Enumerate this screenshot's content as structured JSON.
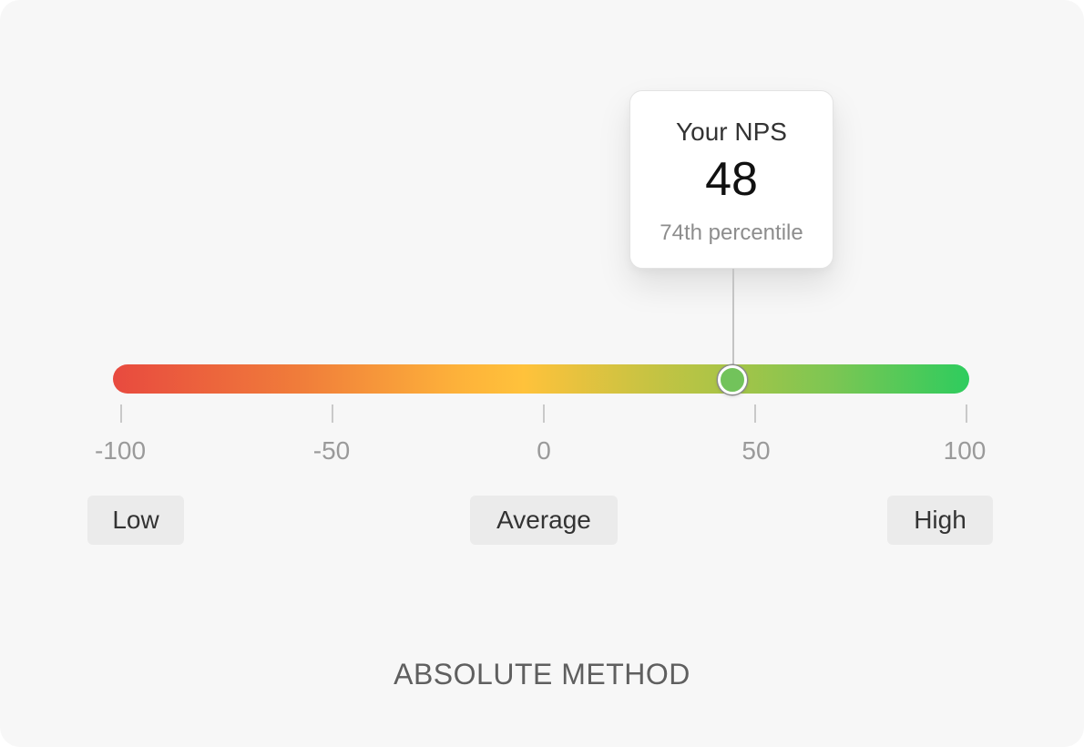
{
  "callout": {
    "title": "Your NPS",
    "value": "48",
    "percentile": "74th percentile"
  },
  "gauge": {
    "score": 48,
    "colors": [
      "#e84a3f",
      "#fdb13a",
      "#ffc23b",
      "#2ecc5e"
    ],
    "marker_color": "#72c35b"
  },
  "scale": {
    "ticks": [
      "-100",
      "-50",
      "0",
      "50",
      "100"
    ]
  },
  "bands": {
    "low": "Low",
    "average": "Average",
    "high": "High"
  },
  "footer": {
    "label": "ABSOLUTE METHOD"
  }
}
